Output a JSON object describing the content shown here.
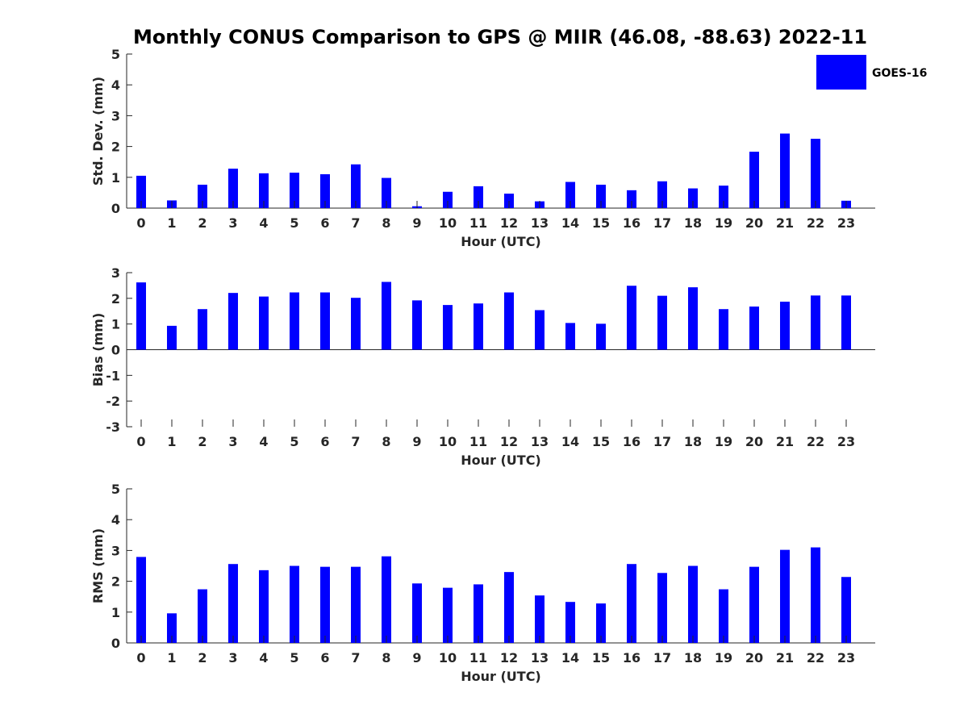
{
  "chart_data": {
    "title": "Monthly CONUS Comparison to GPS @ MIIR (46.08, -88.63) 2022-11",
    "legend": {
      "label": "GOES-16",
      "color": "#0000ff",
      "placement": "top-right"
    },
    "panels": [
      {
        "type": "bar",
        "ylabel": "Std. Dev. (mm)",
        "xlabel": "Hour (UTC)",
        "ylim": [
          0,
          5
        ],
        "yticks": [
          0,
          1,
          2,
          3,
          4,
          5
        ],
        "categories": [
          "0",
          "1",
          "2",
          "3",
          "4",
          "5",
          "6",
          "7",
          "8",
          "9",
          "10",
          "11",
          "12",
          "13",
          "14",
          "15",
          "16",
          "17",
          "18",
          "19",
          "20",
          "21",
          "22",
          "23"
        ],
        "values": [
          1.05,
          0.25,
          0.76,
          1.28,
          1.13,
          1.15,
          1.1,
          1.42,
          0.98,
          0.06,
          0.53,
          0.71,
          0.47,
          0.22,
          0.85,
          0.76,
          0.58,
          0.87,
          0.64,
          0.73,
          1.83,
          2.42,
          2.25,
          0.24
        ]
      },
      {
        "type": "bar",
        "ylabel": "Bias (mm)",
        "xlabel": "Hour (UTC)",
        "ylim": [
          -3,
          3
        ],
        "yticks": [
          -3,
          -2,
          -1,
          0,
          1,
          2,
          3
        ],
        "categories": [
          "0",
          "1",
          "2",
          "3",
          "4",
          "5",
          "6",
          "7",
          "8",
          "9",
          "10",
          "11",
          "12",
          "13",
          "14",
          "15",
          "16",
          "17",
          "18",
          "19",
          "20",
          "21",
          "22",
          "23"
        ],
        "values": [
          2.62,
          0.93,
          1.58,
          2.21,
          2.07,
          2.23,
          2.23,
          2.02,
          2.64,
          1.92,
          1.74,
          1.8,
          2.23,
          1.54,
          1.04,
          1.01,
          2.49,
          2.1,
          2.43,
          1.58,
          1.68,
          1.87,
          2.11,
          2.11
        ]
      },
      {
        "type": "bar",
        "ylabel": "RMS (mm)",
        "xlabel": "Hour (UTC)",
        "ylim": [
          0,
          5
        ],
        "yticks": [
          0,
          1,
          2,
          3,
          4,
          5
        ],
        "categories": [
          "0",
          "1",
          "2",
          "3",
          "4",
          "5",
          "6",
          "7",
          "8",
          "9",
          "10",
          "11",
          "12",
          "13",
          "14",
          "15",
          "16",
          "17",
          "18",
          "19",
          "20",
          "21",
          "22",
          "23"
        ],
        "values": [
          2.79,
          0.96,
          1.74,
          2.56,
          2.36,
          2.5,
          2.47,
          2.47,
          2.81,
          1.93,
          1.79,
          1.9,
          2.3,
          1.54,
          1.33,
          1.28,
          2.56,
          2.27,
          2.5,
          1.74,
          2.47,
          3.02,
          3.1,
          2.14
        ]
      }
    ]
  }
}
